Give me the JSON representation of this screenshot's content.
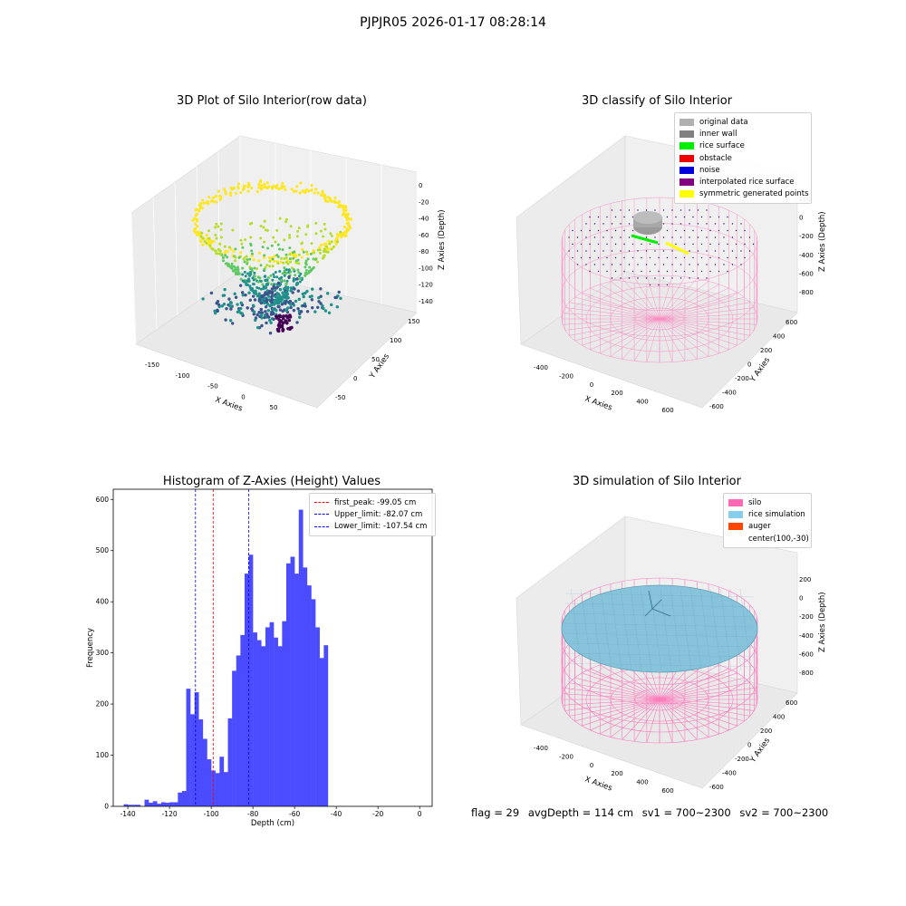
{
  "suptitle": "PJPJR05 2026-01-17 08:28:14",
  "panels": {
    "raw": {
      "title": "3D Plot of Silo Interior(row data)",
      "xlabel": "X Axies",
      "ylabel": "Y Axies",
      "zlabel": "Z Axies (Depth)",
      "xticks": [
        "-150",
        "-100",
        "-50",
        "0",
        "50"
      ],
      "yticks": [
        "-50",
        "0",
        "50",
        "100",
        "150"
      ],
      "zticks": [
        "0",
        "-20",
        "-40",
        "-60",
        "-80",
        "-100",
        "-120",
        "-140"
      ]
    },
    "classify": {
      "title": "3D classify of Silo Interior",
      "xlabel": "X Axies",
      "ylabel": "Y Axies",
      "zlabel": "Z Axies (Depth)",
      "xticks": [
        "-400",
        "-200",
        "0",
        "200",
        "400",
        "600"
      ],
      "yticks": [
        "-600",
        "-400",
        "-200",
        "0",
        "200",
        "400",
        "600"
      ],
      "zticks": [
        "200",
        "0",
        "-200",
        "-400",
        "-600",
        "-800"
      ],
      "legend": [
        {
          "label": "original data",
          "color": "#b0b0b0"
        },
        {
          "label": "inner wall",
          "color": "#808080"
        },
        {
          "label": "rice surface",
          "color": "#00ee00"
        },
        {
          "label": "obstacle",
          "color": "#ee0000"
        },
        {
          "label": "noise",
          "color": "#0000dd"
        },
        {
          "label": "interpolated rice surface",
          "color": "#800080"
        },
        {
          "label": "symmetric generated points",
          "color": "#ffff00"
        }
      ]
    },
    "simulation": {
      "title": "3D simulation of Silo Interior",
      "xlabel": "X Axies",
      "ylabel": "Y Axies",
      "zlabel": "Z Axies (Depth)",
      "xticks": [
        "-400",
        "-200",
        "0",
        "200",
        "400",
        "600"
      ],
      "yticks": [
        "-600",
        "-400",
        "-200",
        "0",
        "200",
        "400",
        "600"
      ],
      "zticks": [
        "200",
        "0",
        "-200",
        "-400",
        "-600",
        "-800"
      ],
      "legend": [
        {
          "label": "silo",
          "color": "#ff69b4"
        },
        {
          "label": "rice simulation",
          "color": "#87ceeb"
        },
        {
          "label": "auger",
          "color": "#ff4500"
        },
        {
          "label": "center(100,-30)",
          "color": ""
        }
      ]
    }
  },
  "chart_data": {
    "type": "bar",
    "title": "Histogram of Z-Axies (Height) Values",
    "xlabel": "Depth (cm)",
    "ylabel": "Frequency",
    "xlim": [
      -147,
      6
    ],
    "ylim": [
      0,
      620
    ],
    "xticks": [
      -140,
      -120,
      -100,
      -80,
      -60,
      -40,
      -20,
      0
    ],
    "yticks": [
      0,
      100,
      200,
      300,
      400,
      500,
      600
    ],
    "bar_color": "#4b4bff",
    "bin_width": 2,
    "bin_start": -142,
    "values": [
      4,
      3,
      3,
      3,
      0,
      13,
      7,
      10,
      5,
      8,
      7,
      8,
      8,
      27,
      30,
      230,
      180,
      223,
      170,
      132,
      92,
      70,
      65,
      97,
      67,
      172,
      265,
      295,
      335,
      455,
      492,
      340,
      325,
      313,
      350,
      360,
      330,
      313,
      362,
      475,
      488,
      455,
      580,
      467,
      432,
      405,
      350,
      290,
      315
    ],
    "vlines": [
      {
        "label": "first_peak: -99.05 cm",
        "x": -99.05,
        "color": "#ff0000"
      },
      {
        "label": "Upper_limit: -82.07 cm",
        "x": -82.07,
        "color": "#0000ff"
      },
      {
        "label": "Lower_limit: -107.54 cm",
        "x": -107.54,
        "color": "#0000ff"
      }
    ],
    "legend_position": "top-right"
  },
  "status": {
    "flag": "flag = 29",
    "avg": "avgDepth = 114 cm",
    "sv1": "sv1 = 700~2300",
    "sv2": "sv2 = 700~2300"
  }
}
